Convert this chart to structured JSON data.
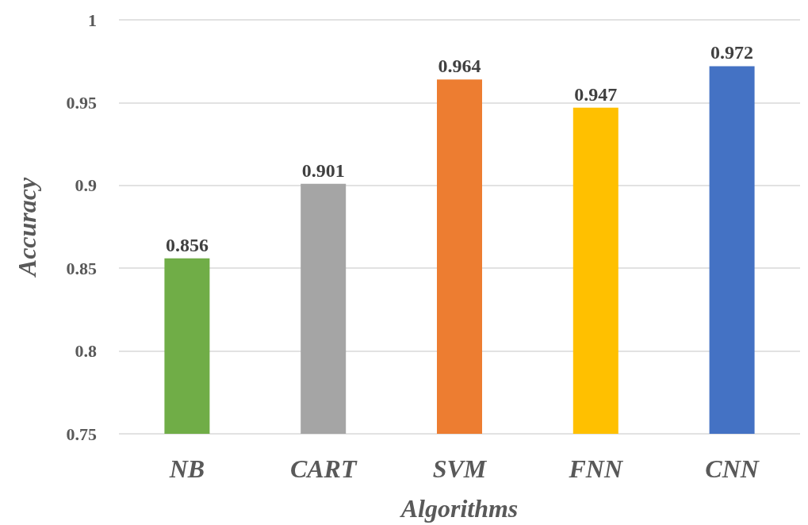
{
  "chart_data": {
    "type": "bar",
    "xlabel": "Algorithms",
    "ylabel": "Accuracy",
    "categories": [
      "NB",
      "CART",
      "SVM",
      "FNN",
      "CNN"
    ],
    "values": [
      0.856,
      0.901,
      0.964,
      0.947,
      0.972
    ],
    "colors": [
      "#70ad47",
      "#a5a5a5",
      "#ed7d31",
      "#ffc000",
      "#4472c4"
    ],
    "ylim": [
      0.75,
      1
    ],
    "yticks": [
      0.75,
      0.8,
      0.85,
      0.9,
      0.95,
      1
    ],
    "grid": "y",
    "data_labels": true
  }
}
